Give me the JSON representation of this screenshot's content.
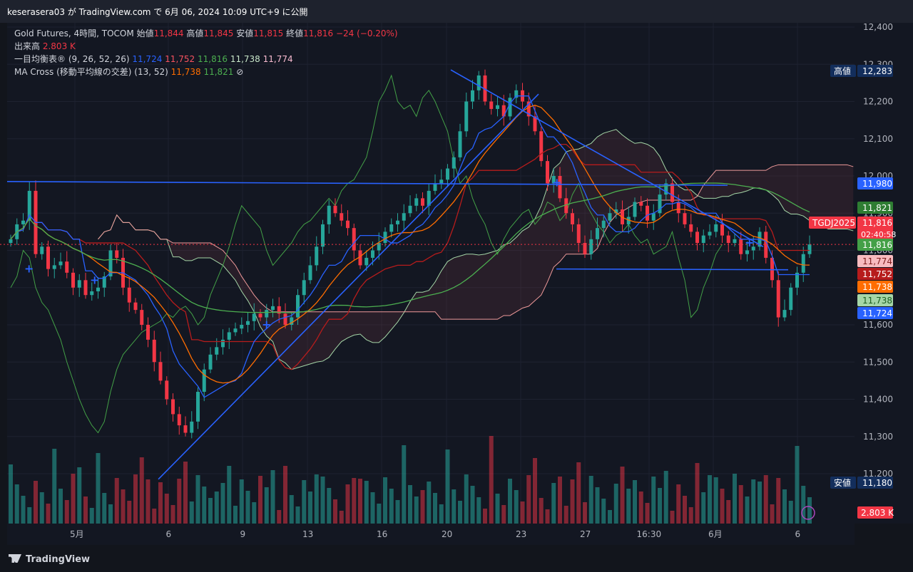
{
  "header": {
    "title": "keserasera03 が TradingView.com で 6月 06, 2024 10:09 UTC+9 に公開"
  },
  "legend": {
    "symbol": "Gold Futures, 4時間, TOCOM",
    "open_label": "始値",
    "open_value": "11,844",
    "high_label": "高値",
    "high_value": "11,845",
    "low_label": "安値",
    "low_value": "11,815",
    "close_label": "終値",
    "close_value": "11,816",
    "change": "−24 (−0.20%)",
    "volume_label": "出来高",
    "volume_value": "2.803 K",
    "ichimoku_label": "一目均衡表® (9, 26, 52, 26)",
    "ichimoku_values": [
      "11,724",
      "11,752",
      "11,816",
      "11,738",
      "11,774"
    ],
    "ma_label": "MA Cross (移動平均線の交差) (13, 52)",
    "ma_values": [
      "11,738",
      "11,821"
    ],
    "ma_icon": "⊘"
  },
  "footer": {
    "brand": "TradingView"
  },
  "colors": {
    "up": "#26a69a",
    "down": "#f23645",
    "tenkan": "#2962ff",
    "kijun": "#b71c1c",
    "chikou": "#43a047",
    "spanA": "#a5d6a7",
    "spanB": "#ef9a9a",
    "ma_fast": "#ff6d00",
    "ma_slow": "#4caf50",
    "drawing": "#2962ff"
  },
  "chart_data": {
    "type": "candlestick",
    "ylim": [
      11150,
      12420
    ],
    "y_ticks": [
      "12,400",
      "12,300",
      "12,200",
      "12,100",
      "12,000",
      "11,900",
      "11,800",
      "11,700",
      "11,600",
      "11,500",
      "11,400",
      "11,300",
      "11,200"
    ],
    "x_ticks": [
      "5月",
      "6",
      "9",
      "13",
      "16",
      "20",
      "23",
      "27",
      "16:30",
      "6月",
      "6"
    ],
    "price_labels": [
      {
        "value": 12283,
        "text": "12,283",
        "tag": "高値",
        "bg": "#132e5c",
        "fg": "#ffffff"
      },
      {
        "value": 11980,
        "text": "11,980",
        "bg": "#2962ff",
        "fg": "#ffffff"
      },
      {
        "value": 11821,
        "text": "11,821",
        "bg": "#2e7d32",
        "fg": "#ffffff"
      },
      {
        "value": 11816,
        "text": "11,816",
        "tag": "TGDJ2025",
        "sub": "02:40:58",
        "bg": "#f23645",
        "fg": "#ffffff"
      },
      {
        "value": 11816,
        "text": "11,816",
        "bg": "#43a047",
        "fg": "#ffffff"
      },
      {
        "value": 11774,
        "text": "11,774",
        "bg": "#f8bbbf",
        "fg": "#7f1d1d"
      },
      {
        "value": 11752,
        "text": "11,752",
        "bg": "#b71c1c",
        "fg": "#ffffff"
      },
      {
        "value": 11738,
        "text": "11,738",
        "bg": "#ff6d00",
        "fg": "#ffffff"
      },
      {
        "value": 11738,
        "text": "11,738",
        "bg": "#a5d6a7",
        "fg": "#1b5e20"
      },
      {
        "value": 11724,
        "text": "11,724",
        "bg": "#2962ff",
        "fg": "#ffffff"
      },
      {
        "value": 11180,
        "text": "11,180",
        "tag": "安値",
        "bg": "#132e5c",
        "fg": "#ffffff"
      }
    ],
    "volume_label": "2.803 K",
    "close_series": [
      11830,
      11870,
      11880,
      11960,
      11790,
      11810,
      11750,
      11760,
      11770,
      11740,
      11700,
      11720,
      11680,
      11690,
      11700,
      11730,
      11800,
      11780,
      11700,
      11660,
      11640,
      11600,
      11560,
      11500,
      11450,
      11400,
      11360,
      11330,
      11310,
      11340,
      11420,
      11480,
      11520,
      11540,
      11560,
      11580,
      11590,
      11600,
      11610,
      11630,
      11620,
      11640,
      11650,
      11630,
      11600,
      11620,
      11680,
      11720,
      11760,
      11810,
      11870,
      11920,
      11900,
      11880,
      11860,
      11800,
      11760,
      11780,
      11800,
      11820,
      11850,
      11870,
      11880,
      11900,
      11920,
      11940,
      11920,
      11960,
      11980,
      11990,
      12020,
      12050,
      12120,
      12200,
      12230,
      12270,
      12200,
      12180,
      12190,
      12160,
      12210,
      12230,
      12200,
      12160,
      12120,
      12040,
      11980,
      12000,
      11940,
      11900,
      11870,
      11820,
      11790,
      11830,
      11860,
      11880,
      11900,
      11910,
      11870,
      11890,
      11930,
      11920,
      11880,
      11900,
      11950,
      11980,
      11930,
      11900,
      11870,
      11850,
      11820,
      11840,
      11850,
      11870,
      11840,
      11820,
      11830,
      11790,
      11800,
      11810,
      11850,
      11780,
      11720,
      11620,
      11640,
      11700,
      11740,
      11790,
      11816
    ]
  }
}
